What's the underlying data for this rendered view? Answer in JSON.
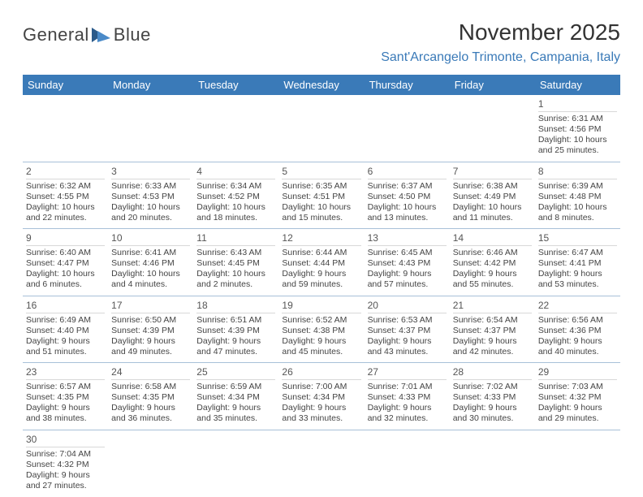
{
  "logo": {
    "part1": "General",
    "part2": "Blue"
  },
  "title": "November 2025",
  "location": "Sant'Arcangelo Trimonte, Campania, Italy",
  "weekdays": [
    "Sunday",
    "Monday",
    "Tuesday",
    "Wednesday",
    "Thursday",
    "Friday",
    "Saturday"
  ],
  "colors": {
    "header_bg": "#3a7ab8",
    "header_text": "#ffffff",
    "location_text": "#3a7ab8",
    "divider": "#a8c0d8",
    "logo_dark": "#2a5a8a",
    "logo_light": "#4a8ac8"
  },
  "weeks": [
    [
      null,
      null,
      null,
      null,
      null,
      null,
      {
        "n": "1",
        "sunrise": "Sunrise: 6:31 AM",
        "sunset": "Sunset: 4:56 PM",
        "daylight": "Daylight: 10 hours and 25 minutes."
      }
    ],
    [
      {
        "n": "2",
        "sunrise": "Sunrise: 6:32 AM",
        "sunset": "Sunset: 4:55 PM",
        "daylight": "Daylight: 10 hours and 22 minutes."
      },
      {
        "n": "3",
        "sunrise": "Sunrise: 6:33 AM",
        "sunset": "Sunset: 4:53 PM",
        "daylight": "Daylight: 10 hours and 20 minutes."
      },
      {
        "n": "4",
        "sunrise": "Sunrise: 6:34 AM",
        "sunset": "Sunset: 4:52 PM",
        "daylight": "Daylight: 10 hours and 18 minutes."
      },
      {
        "n": "5",
        "sunrise": "Sunrise: 6:35 AM",
        "sunset": "Sunset: 4:51 PM",
        "daylight": "Daylight: 10 hours and 15 minutes."
      },
      {
        "n": "6",
        "sunrise": "Sunrise: 6:37 AM",
        "sunset": "Sunset: 4:50 PM",
        "daylight": "Daylight: 10 hours and 13 minutes."
      },
      {
        "n": "7",
        "sunrise": "Sunrise: 6:38 AM",
        "sunset": "Sunset: 4:49 PM",
        "daylight": "Daylight: 10 hours and 11 minutes."
      },
      {
        "n": "8",
        "sunrise": "Sunrise: 6:39 AM",
        "sunset": "Sunset: 4:48 PM",
        "daylight": "Daylight: 10 hours and 8 minutes."
      }
    ],
    [
      {
        "n": "9",
        "sunrise": "Sunrise: 6:40 AM",
        "sunset": "Sunset: 4:47 PM",
        "daylight": "Daylight: 10 hours and 6 minutes."
      },
      {
        "n": "10",
        "sunrise": "Sunrise: 6:41 AM",
        "sunset": "Sunset: 4:46 PM",
        "daylight": "Daylight: 10 hours and 4 minutes."
      },
      {
        "n": "11",
        "sunrise": "Sunrise: 6:43 AM",
        "sunset": "Sunset: 4:45 PM",
        "daylight": "Daylight: 10 hours and 2 minutes."
      },
      {
        "n": "12",
        "sunrise": "Sunrise: 6:44 AM",
        "sunset": "Sunset: 4:44 PM",
        "daylight": "Daylight: 9 hours and 59 minutes."
      },
      {
        "n": "13",
        "sunrise": "Sunrise: 6:45 AM",
        "sunset": "Sunset: 4:43 PM",
        "daylight": "Daylight: 9 hours and 57 minutes."
      },
      {
        "n": "14",
        "sunrise": "Sunrise: 6:46 AM",
        "sunset": "Sunset: 4:42 PM",
        "daylight": "Daylight: 9 hours and 55 minutes."
      },
      {
        "n": "15",
        "sunrise": "Sunrise: 6:47 AM",
        "sunset": "Sunset: 4:41 PM",
        "daylight": "Daylight: 9 hours and 53 minutes."
      }
    ],
    [
      {
        "n": "16",
        "sunrise": "Sunrise: 6:49 AM",
        "sunset": "Sunset: 4:40 PM",
        "daylight": "Daylight: 9 hours and 51 minutes."
      },
      {
        "n": "17",
        "sunrise": "Sunrise: 6:50 AM",
        "sunset": "Sunset: 4:39 PM",
        "daylight": "Daylight: 9 hours and 49 minutes."
      },
      {
        "n": "18",
        "sunrise": "Sunrise: 6:51 AM",
        "sunset": "Sunset: 4:39 PM",
        "daylight": "Daylight: 9 hours and 47 minutes."
      },
      {
        "n": "19",
        "sunrise": "Sunrise: 6:52 AM",
        "sunset": "Sunset: 4:38 PM",
        "daylight": "Daylight: 9 hours and 45 minutes."
      },
      {
        "n": "20",
        "sunrise": "Sunrise: 6:53 AM",
        "sunset": "Sunset: 4:37 PM",
        "daylight": "Daylight: 9 hours and 43 minutes."
      },
      {
        "n": "21",
        "sunrise": "Sunrise: 6:54 AM",
        "sunset": "Sunset: 4:37 PM",
        "daylight": "Daylight: 9 hours and 42 minutes."
      },
      {
        "n": "22",
        "sunrise": "Sunrise: 6:56 AM",
        "sunset": "Sunset: 4:36 PM",
        "daylight": "Daylight: 9 hours and 40 minutes."
      }
    ],
    [
      {
        "n": "23",
        "sunrise": "Sunrise: 6:57 AM",
        "sunset": "Sunset: 4:35 PM",
        "daylight": "Daylight: 9 hours and 38 minutes."
      },
      {
        "n": "24",
        "sunrise": "Sunrise: 6:58 AM",
        "sunset": "Sunset: 4:35 PM",
        "daylight": "Daylight: 9 hours and 36 minutes."
      },
      {
        "n": "25",
        "sunrise": "Sunrise: 6:59 AM",
        "sunset": "Sunset: 4:34 PM",
        "daylight": "Daylight: 9 hours and 35 minutes."
      },
      {
        "n": "26",
        "sunrise": "Sunrise: 7:00 AM",
        "sunset": "Sunset: 4:34 PM",
        "daylight": "Daylight: 9 hours and 33 minutes."
      },
      {
        "n": "27",
        "sunrise": "Sunrise: 7:01 AM",
        "sunset": "Sunset: 4:33 PM",
        "daylight": "Daylight: 9 hours and 32 minutes."
      },
      {
        "n": "28",
        "sunrise": "Sunrise: 7:02 AM",
        "sunset": "Sunset: 4:33 PM",
        "daylight": "Daylight: 9 hours and 30 minutes."
      },
      {
        "n": "29",
        "sunrise": "Sunrise: 7:03 AM",
        "sunset": "Sunset: 4:32 PM",
        "daylight": "Daylight: 9 hours and 29 minutes."
      }
    ],
    [
      {
        "n": "30",
        "sunrise": "Sunrise: 7:04 AM",
        "sunset": "Sunset: 4:32 PM",
        "daylight": "Daylight: 9 hours and 27 minutes."
      },
      null,
      null,
      null,
      null,
      null,
      null
    ]
  ]
}
